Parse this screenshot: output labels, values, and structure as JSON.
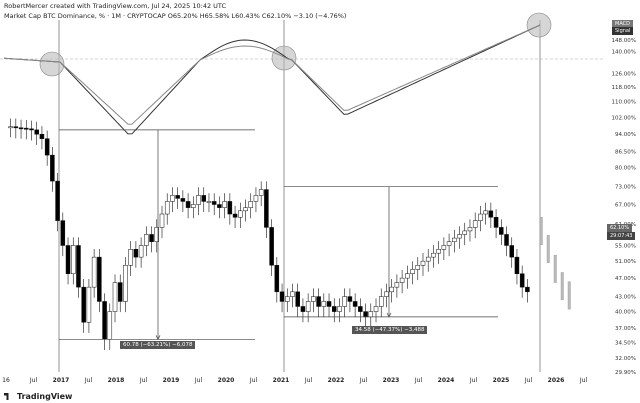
{
  "header": {
    "credit": "RobertMercer created with TradingView.com, Jul 24, 2025 10:42 UTC",
    "symbol_line": "Market Cap BTC Dominance, % · 1M · CRYPTOCAP",
    "ohlc": "O65.20% H65.58% L60.43% C62.10% −3.10 (−4.76%)"
  },
  "footer": {
    "brand": "TradingView"
  },
  "annotations": {
    "drop1": "60.78 (−63.21%) −6,078",
    "drop2": "34.58 (−47.37%) −3,488"
  },
  "legend": {
    "macd": "MACD",
    "signal": "Signal"
  },
  "price_badges": [
    "62.10%",
    "29:07:43"
  ],
  "colors": {
    "up": "#ffffff",
    "down": "#000000",
    "line": "#111111",
    "grid": "#dddddd"
  },
  "chart_data": {
    "type": "candlestick",
    "title": "Market Cap BTC Dominance, % · 1M · CRYPTOCAP",
    "x_ticks": [
      "16",
      "Jul",
      "2017",
      "Jul",
      "2018",
      "Jul",
      "2019",
      "Jul",
      "2020",
      "Jul",
      "2021",
      "Jul",
      "2022",
      "Jul",
      "2023",
      "Jul",
      "2024",
      "Jul",
      "2025",
      "Jul",
      "2026",
      "Jul"
    ],
    "y_ticks": [
      "148.00%",
      "140.00%",
      "126.00%",
      "118.00%",
      "110.00%",
      "102.00%",
      "94.00%",
      "86.50%",
      "80.00%",
      "73.00%",
      "67.00%",
      "61.00%",
      "55.00%",
      "51.00%",
      "47.00%",
      "43.00%",
      "40.00%",
      "37.00%",
      "34.50%",
      "32.00%",
      "29.90%"
    ],
    "close_series": [
      97.5,
      97,
      96.8,
      96.5,
      96,
      94,
      92,
      85,
      75,
      62,
      55,
      48,
      55,
      45,
      38,
      45,
      52,
      42,
      35,
      40,
      46,
      42,
      50,
      54,
      52,
      55,
      58,
      56,
      60,
      64,
      68,
      70,
      69,
      68,
      66,
      67,
      70,
      68,
      68,
      67,
      66,
      68,
      64,
      63,
      65,
      66,
      68,
      70,
      72,
      60,
      50,
      44,
      42,
      43,
      44,
      41,
      40,
      42,
      43,
      41,
      42,
      41,
      40,
      41,
      43,
      42,
      41,
      40,
      39,
      40,
      41,
      43,
      44,
      45,
      46,
      47,
      48,
      49,
      50,
      51,
      52,
      53,
      54,
      55,
      56,
      57,
      58,
      59,
      60,
      62,
      64,
      65,
      63,
      60,
      58,
      55,
      52,
      48,
      45,
      44
    ],
    "forecast": [
      60,
      55,
      50,
      46,
      44
    ],
    "ranges": [
      {
        "label": "60.78 (−63.21%) −6,078",
        "from": 96,
        "to": 35
      },
      {
        "label": "34.58 (−47.37%) −3,488",
        "from": 73,
        "to": 39
      }
    ],
    "indicator": "MACD / Signal"
  }
}
